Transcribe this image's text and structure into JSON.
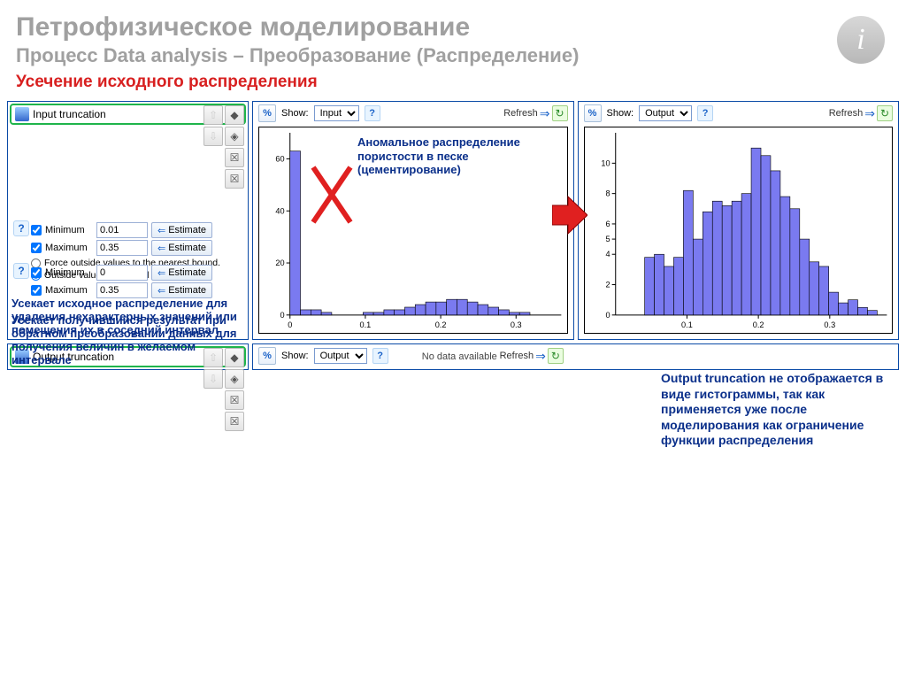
{
  "page": {
    "title": "Петрофизическое моделирование",
    "subtitle": "Процесс Data analysis – Преобразование (Распределение)",
    "subheading": "Усечение исходного распределения"
  },
  "info_icon_glyph": "i",
  "panels": {
    "input_trunc": {
      "header": "Input truncation",
      "minimum_label": "Minimum",
      "minimum_value": "0.01",
      "maximum_label": "Maximum",
      "maximum_value": "0.35",
      "estimate_label": "Estimate",
      "radio1": "Force outside values to the nearest bound.",
      "radio2": "Outside values undefined",
      "note": "Усекает исходное распределение для удаления нехарактерных значений или помещения их в соседний интервал"
    },
    "output_trunc": {
      "header": "Output truncation",
      "minimum_label": "Minimum",
      "minimum_value": "0",
      "maximum_label": "Maximum",
      "maximum_value": "0.35",
      "estimate_label": "Estimate",
      "note": "Усекает получившийся результат при обратном преобразовании данных для получения величин в желаемом интервале"
    }
  },
  "toolbar": {
    "show_label": "Show:",
    "input_option": "Input",
    "output_option": "Output",
    "refresh_label": "Refresh",
    "pct_glyph": "%"
  },
  "chart_input": {
    "type": "histogram",
    "annotation": "Аномальное распределение пористости в песке (цементирование)",
    "x_ticks": [
      0,
      0.1,
      0.2,
      0.3
    ],
    "y_ticks": [
      0,
      20,
      40,
      60
    ],
    "bins": [
      63,
      2,
      2,
      1,
      0,
      0,
      0,
      1,
      1,
      2,
      2,
      3,
      4,
      5,
      5,
      6,
      6,
      5,
      4,
      3,
      2,
      1,
      1,
      0,
      0,
      0
    ],
    "xmax": 0.36,
    "ymax": 70,
    "bar_color": "#7a7af0",
    "bar_border": "#000000",
    "background": "#ffffff",
    "axis_color": "#000000",
    "tick_fontsize": 9
  },
  "chart_output": {
    "type": "histogram",
    "x_ticks": [
      0.1,
      0.2,
      0.3
    ],
    "y_ticks": [
      0,
      2,
      4,
      5,
      6,
      8,
      10
    ],
    "bins": [
      0,
      0,
      0,
      3.8,
      4,
      3.2,
      3.8,
      8.2,
      5,
      6.8,
      7.5,
      7.2,
      7.5,
      8,
      11,
      10.5,
      9.5,
      7.8,
      7,
      5,
      3.5,
      3.2,
      1.5,
      0.8,
      1,
      0.5,
      0.3,
      0
    ],
    "xmax": 0.38,
    "ymax": 12,
    "bar_color": "#7a7af0",
    "bar_border": "#000000",
    "background": "#ffffff",
    "axis_color": "#000000",
    "tick_fontsize": 9
  },
  "bottom_right_note": {
    "bold_lead": "Output truncation",
    "rest": " не отображается в виде гистограммы, так как применяется уже после моделирования как ограничение функции распределения"
  },
  "no_data_text": "No data available",
  "red_arrow_color": "#e02020",
  "red_x_color": "#e02020"
}
